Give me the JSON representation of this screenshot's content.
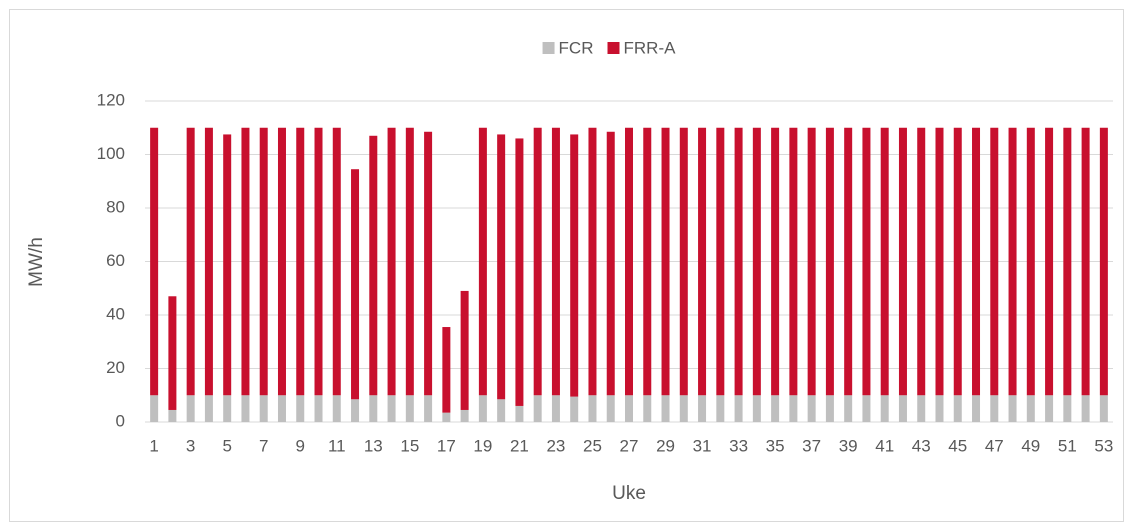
{
  "chart_data": {
    "type": "bar",
    "stacked": true,
    "x_label": "Uke",
    "y_label": "MW/h",
    "categories": [
      1,
      null,
      3,
      null,
      5,
      null,
      7,
      null,
      9,
      null,
      11,
      null,
      13,
      null,
      15,
      null,
      17,
      null,
      19,
      null,
      21,
      null,
      23,
      null,
      25,
      null,
      27,
      null,
      29,
      null,
      31,
      null,
      33,
      null,
      35,
      null,
      37,
      null,
      39,
      null,
      41,
      null,
      43,
      null,
      45,
      null,
      47,
      null,
      49,
      null,
      51,
      null,
      53
    ],
    "series": [
      {
        "name": "FCR",
        "color": "#bfbfbf",
        "values": [
          10,
          4.5,
          10,
          10,
          10,
          10,
          10,
          10,
          10,
          10,
          10,
          8.5,
          10,
          10,
          10,
          10,
          3.5,
          4.5,
          10,
          8.5,
          6,
          10,
          10,
          9.5,
          10,
          10,
          10,
          10,
          10,
          10,
          10,
          10,
          10,
          10,
          10,
          10,
          10,
          10,
          10,
          10,
          10,
          10,
          10,
          10,
          10,
          10,
          10,
          10,
          10,
          10,
          10,
          10,
          10
        ]
      },
      {
        "name": "FRR-A",
        "color": "#c8102e",
        "values": [
          100,
          42.5,
          100,
          100,
          97.5,
          100,
          100,
          100,
          100,
          100,
          100,
          86,
          97,
          100,
          100,
          98.5,
          32,
          44.5,
          100,
          99,
          100,
          100,
          100,
          98,
          100,
          98.5,
          100,
          100,
          100,
          100,
          100,
          100,
          100,
          100,
          100,
          100,
          100,
          100,
          100,
          100,
          100,
          100,
          100,
          100,
          100,
          100,
          100,
          100,
          100,
          100,
          100,
          100,
          100
        ]
      }
    ],
    "ylim": [
      0,
      120
    ],
    "yticks": [
      0,
      20,
      40,
      60,
      80,
      100,
      120
    ],
    "grid": true,
    "legend": "top"
  }
}
